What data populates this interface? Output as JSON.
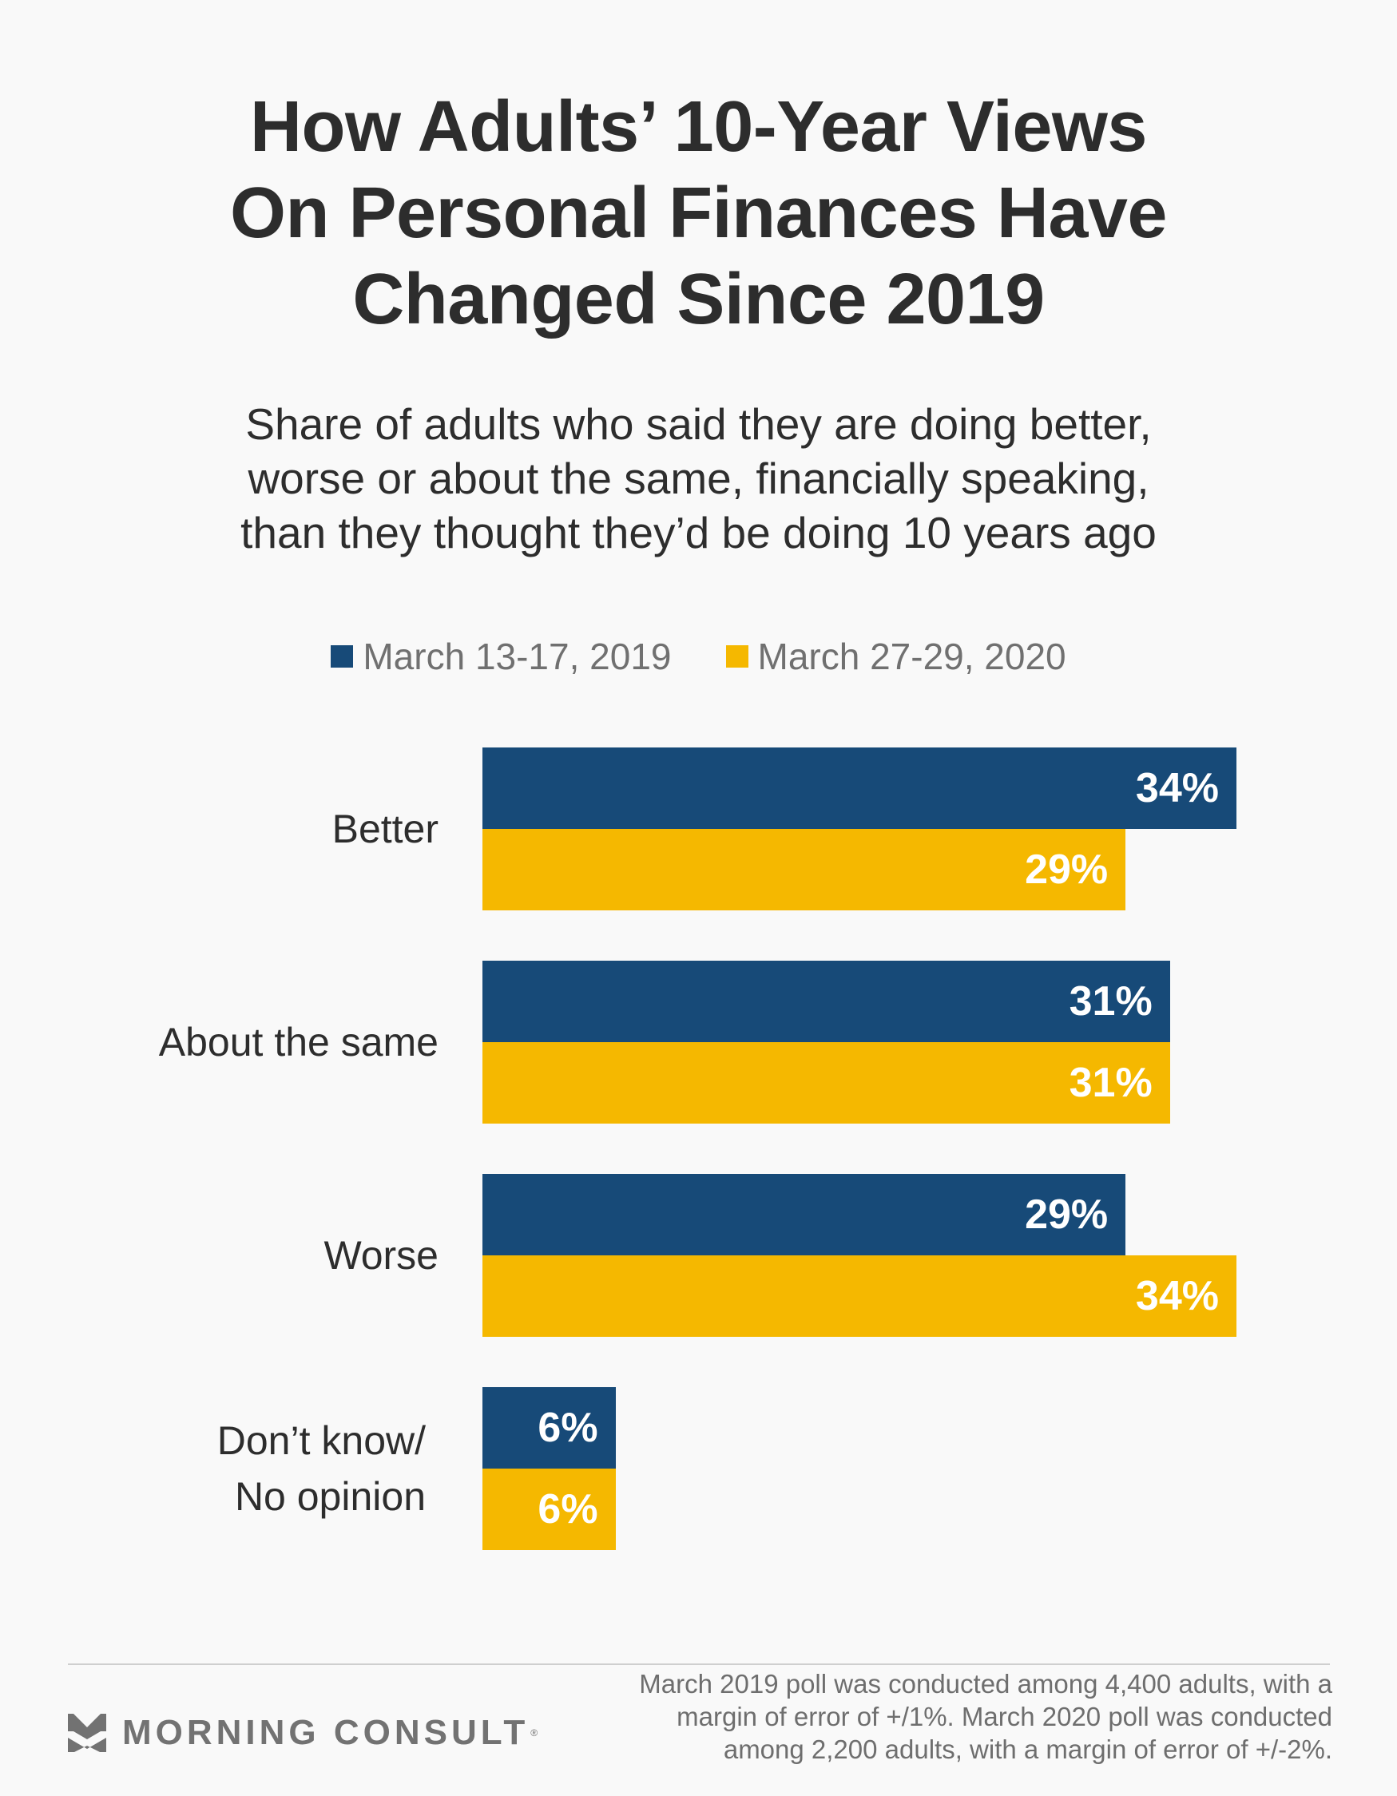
{
  "header": {
    "title_lines": [
      "How Adults’ 10-Year Views",
      "On Personal Finances Have",
      "Changed Since 2019"
    ],
    "subtitle_lines": [
      "Share of adults who said they are doing better,",
      "worse or about the same, financially speaking,",
      "than they thought they’d be doing 10 years ago"
    ]
  },
  "legend": [
    {
      "label": "March 13-17, 2019",
      "color": "#174a78"
    },
    {
      "label": "March 27-29, 2020",
      "color": "#f5b800"
    }
  ],
  "chart_data": {
    "type": "bar",
    "orientation": "horizontal",
    "title": "How Adults’ 10-Year Views On Personal Finances Have Changed Since 2019",
    "subtitle": "Share of adults who said they are doing better, worse or about the same, financially speaking, than they thought they’d be doing 10 years ago",
    "categories": [
      "Better",
      "About the same",
      "Worse",
      "Don’t know/ No opinion"
    ],
    "category_label_lines": [
      [
        "Better"
      ],
      [
        "About the same"
      ],
      [
        "Worse"
      ],
      [
        "Don’t know/",
        "No opinion"
      ]
    ],
    "series": [
      {
        "name": "March 13-17, 2019",
        "color": "#174a78",
        "values": [
          34,
          31,
          29,
          6
        ]
      },
      {
        "name": "March 27-29, 2020",
        "color": "#f5b800",
        "values": [
          29,
          31,
          34,
          6
        ]
      }
    ],
    "value_suffix": "%",
    "xlabel": "",
    "ylabel": "",
    "xlim": [
      0,
      34
    ],
    "grid": false,
    "legend_position": "top"
  },
  "footer": {
    "brand": "MORNING CONSULT",
    "brand_mark": "®",
    "note_lines": [
      "March 2019 poll was conducted among 4,400 adults, with a",
      "margin of error of +/1%. March 2020 poll was conducted",
      "among 2,200 adults, with a margin of error of +/-2%."
    ]
  }
}
